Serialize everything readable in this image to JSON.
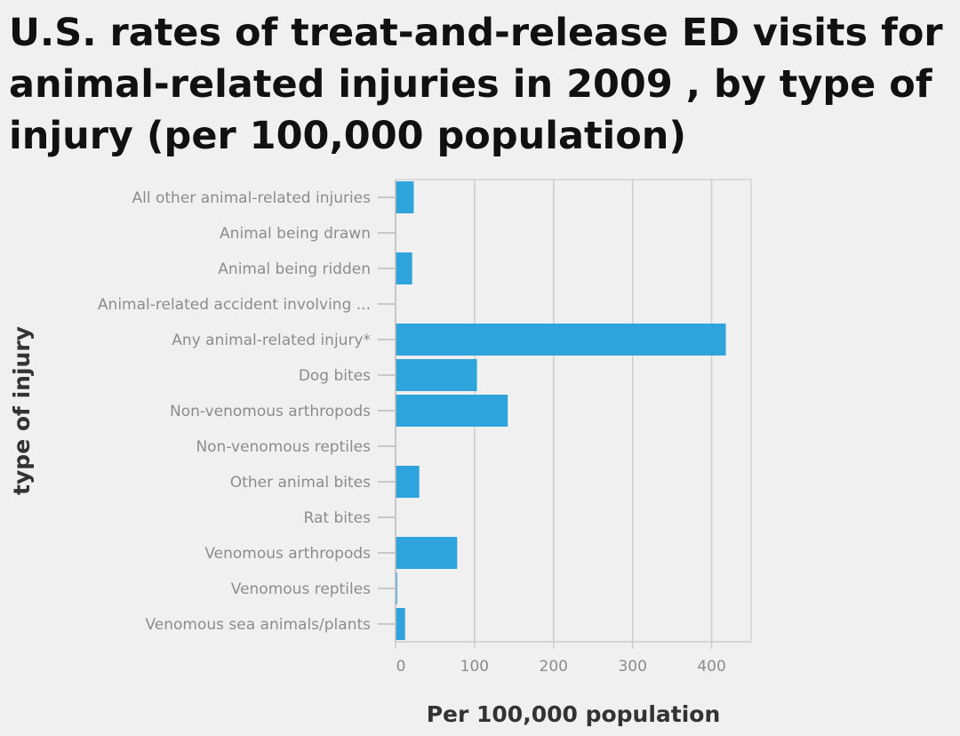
{
  "chart_data": {
    "type": "bar",
    "orientation": "horizontal",
    "title": "U.S. rates of treat-and-release ED visits for animal-related injuries in 2009 , by type of injury (per 100,000 population)",
    "xlabel": "Per 100,000 population",
    "ylabel": "type of injury",
    "categories": [
      "All other animal-related injuries",
      "Animal being drawn",
      "Animal being ridden",
      "Animal-related accident involving ...",
      "Any animal-related injury*",
      "Dog bites",
      "Non-venomous arthropods",
      "Non-venomous reptiles",
      "Other animal bites",
      "Rat bites",
      "Venomous arthropods",
      "Venomous reptiles",
      "Venomous sea animals/plants"
    ],
    "values": [
      23,
      0.2,
      21,
      0.2,
      418,
      103,
      142,
      0.5,
      30,
      0.5,
      78,
      2,
      12
    ],
    "xlim": [
      0,
      450
    ],
    "xticks": [
      0,
      100,
      200,
      300,
      400
    ],
    "grid": "vertical",
    "bar_color": "#2ea3dc"
  }
}
